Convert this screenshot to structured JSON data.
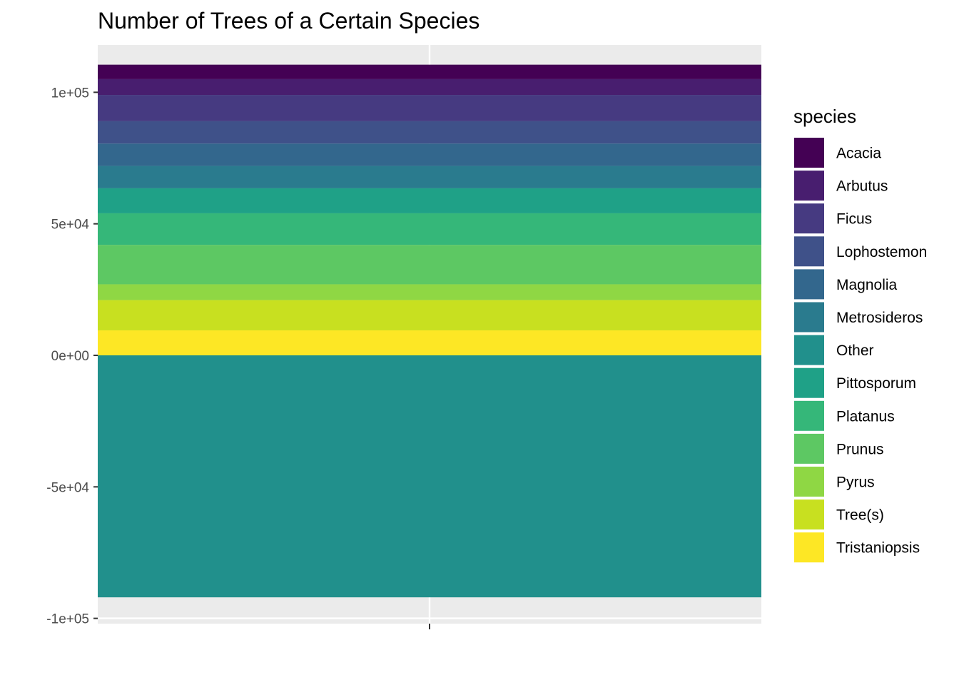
{
  "chart_data": {
    "type": "bar",
    "stacked": true,
    "title": "Number of Trees of a Certain Species",
    "xlabel": "",
    "ylabel": "",
    "categories": [
      ""
    ],
    "ylim": [
      -102000,
      118000
    ],
    "y_ticks": [
      {
        "value": -100000,
        "label": "-1e+05"
      },
      {
        "value": -50000,
        "label": "-5e+04"
      },
      {
        "value": 0,
        "label": "0e+00"
      },
      {
        "value": 50000,
        "label": "5e+04"
      },
      {
        "value": 100000,
        "label": "1e+05"
      }
    ],
    "grid": true,
    "legend": {
      "title": "species",
      "position": "right",
      "items": [
        {
          "name": "Acacia",
          "color": "#440154"
        },
        {
          "name": "Arbutus",
          "color": "#481E6F"
        },
        {
          "name": "Ficus",
          "color": "#463A81"
        },
        {
          "name": "Lophostemon",
          "color": "#3F5189"
        },
        {
          "name": "Magnolia",
          "color": "#33678D"
        },
        {
          "name": "Metrosideros",
          "color": "#2A7B8E"
        },
        {
          "name": "Other",
          "color": "#21908C"
        },
        {
          "name": "Pittosporum",
          "color": "#1FA187"
        },
        {
          "name": "Platanus",
          "color": "#35B779"
        },
        {
          "name": "Prunus",
          "color": "#5DC863"
        },
        {
          "name": "Pyrus",
          "color": "#8FD744"
        },
        {
          "name": "Tree(s)",
          "color": "#C8E020"
        },
        {
          "name": "Tristaniopsis",
          "color": "#FDE725"
        }
      ]
    },
    "segments": [
      {
        "species": "Acacia",
        "from": 105000,
        "to": 110500
      },
      {
        "species": "Arbutus",
        "from": 99000,
        "to": 105000
      },
      {
        "species": "Ficus",
        "from": 89000,
        "to": 99000
      },
      {
        "species": "Lophostemon",
        "from": 80500,
        "to": 89000
      },
      {
        "species": "Magnolia",
        "from": 72000,
        "to": 80500
      },
      {
        "species": "Metrosideros",
        "from": 63500,
        "to": 72000
      },
      {
        "species": "Pittosporum",
        "from": 54000,
        "to": 63500
      },
      {
        "species": "Platanus",
        "from": 42000,
        "to": 54000
      },
      {
        "species": "Prunus",
        "from": 27000,
        "to": 42000
      },
      {
        "species": "Pyrus",
        "from": 21000,
        "to": 27000
      },
      {
        "species": "Tree(s)",
        "from": 9500,
        "to": 21000
      },
      {
        "species": "Tristaniopsis",
        "from": 0,
        "to": 9500
      },
      {
        "species": "Other",
        "from": -92000,
        "to": 0
      }
    ]
  }
}
